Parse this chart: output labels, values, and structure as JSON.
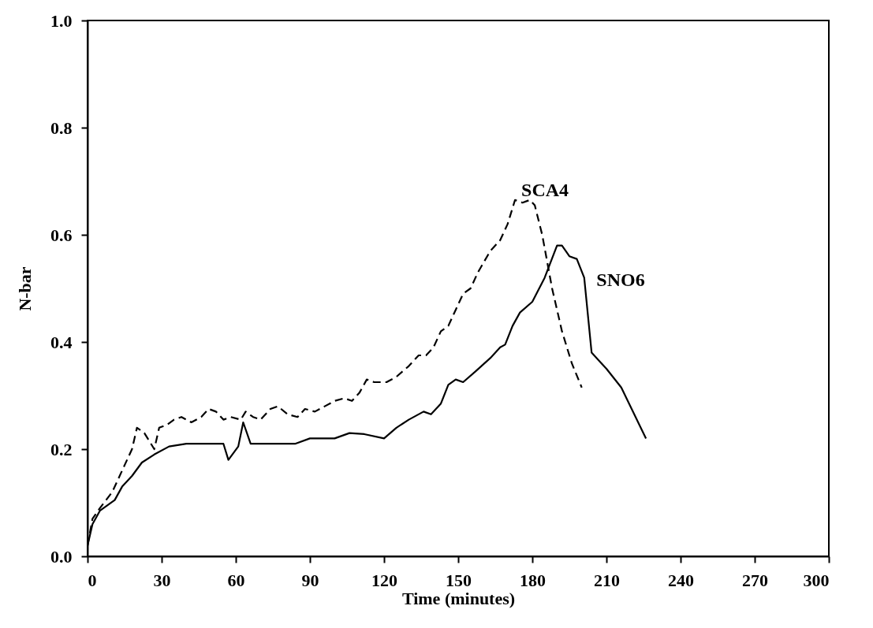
{
  "chart_data": {
    "type": "line",
    "xlabel": "Time (minutes)",
    "ylabel": "N-bar",
    "xlim": [
      0,
      300
    ],
    "ylim": [
      0,
      1.0
    ],
    "xticks": [
      0,
      30,
      60,
      90,
      120,
      150,
      180,
      210,
      240,
      270,
      300
    ],
    "yticks": [
      {
        "value": 0,
        "label": "0.0"
      },
      {
        "value": 0.2,
        "label": "0.2"
      },
      {
        "value": 0.4,
        "label": "0.4"
      },
      {
        "value": 0.6,
        "label": "0.6"
      },
      {
        "value": 0.8,
        "label": "0.8"
      },
      {
        "value": 1.0,
        "label": "1.0"
      }
    ],
    "grid": false,
    "marker": "none",
    "series": [
      {
        "name": "SCA4",
        "color": "#000000",
        "line_style": "dashed",
        "x": [
          0,
          2,
          5,
          10,
          15,
          18,
          20,
          23,
          27,
          29,
          32,
          35,
          38,
          42,
          46,
          49,
          52,
          55,
          58,
          62,
          64,
          67,
          70,
          74,
          77,
          81,
          85,
          88,
          92,
          96,
          100,
          104,
          107,
          110,
          113,
          116,
          121,
          125,
          130,
          134,
          137,
          140,
          143,
          146,
          149,
          152,
          155,
          158,
          163,
          167,
          170,
          173,
          176,
          179,
          181,
          184,
          188,
          192,
          196,
          200
        ],
        "values": [
          0.02,
          0.07,
          0.09,
          0.12,
          0.17,
          0.2,
          0.24,
          0.23,
          0.2,
          0.24,
          0.245,
          0.255,
          0.26,
          0.25,
          0.26,
          0.275,
          0.27,
          0.255,
          0.26,
          0.255,
          0.27,
          0.26,
          0.255,
          0.275,
          0.28,
          0.265,
          0.26,
          0.275,
          0.27,
          0.28,
          0.29,
          0.295,
          0.29,
          0.305,
          0.33,
          0.325,
          0.325,
          0.335,
          0.355,
          0.375,
          0.375,
          0.39,
          0.42,
          0.43,
          0.46,
          0.49,
          0.5,
          0.53,
          0.57,
          0.59,
          0.62,
          0.665,
          0.66,
          0.665,
          0.655,
          0.6,
          0.5,
          0.42,
          0.36,
          0.315
        ]
      },
      {
        "name": "SNO6",
        "color": "#000000",
        "line_style": "solid",
        "x": [
          0,
          2,
          5,
          8,
          11,
          14,
          18,
          22,
          27,
          33,
          40,
          48,
          55,
          57,
          61,
          63,
          66,
          75,
          84,
          90,
          100,
          106,
          112,
          120,
          125,
          130,
          136,
          139,
          143,
          146,
          149,
          152,
          157,
          163,
          167,
          169,
          172,
          175,
          180,
          185,
          190,
          192,
          195,
          198,
          201,
          204,
          210,
          216,
          226
        ],
        "values": [
          0.02,
          0.06,
          0.085,
          0.095,
          0.105,
          0.13,
          0.15,
          0.175,
          0.19,
          0.205,
          0.21,
          0.21,
          0.21,
          0.18,
          0.205,
          0.25,
          0.21,
          0.21,
          0.21,
          0.22,
          0.22,
          0.23,
          0.228,
          0.22,
          0.24,
          0.255,
          0.27,
          0.265,
          0.285,
          0.32,
          0.33,
          0.325,
          0.345,
          0.37,
          0.39,
          0.395,
          0.43,
          0.455,
          0.475,
          0.52,
          0.58,
          0.58,
          0.56,
          0.555,
          0.52,
          0.38,
          0.35,
          0.315,
          0.22
        ]
      }
    ]
  }
}
